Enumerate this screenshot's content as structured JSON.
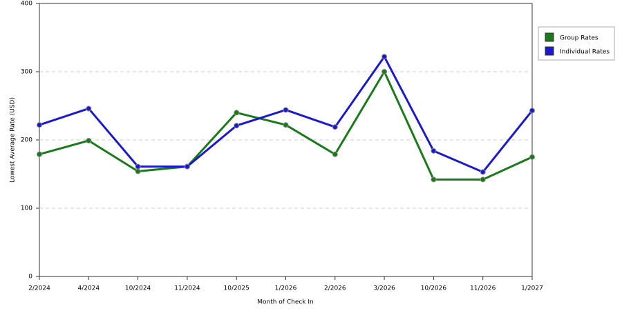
{
  "chart_data": {
    "type": "line",
    "x_label": "Month of Check In",
    "y_label": "Lowest Average Rate (USD)",
    "categories": [
      "2/2024",
      "4/2024",
      "10/2024",
      "11/2024",
      "10/2025",
      "1/2026",
      "2/2026",
      "3/2026",
      "10/2026",
      "11/2026",
      "1/2027"
    ],
    "series": [
      {
        "name": "Group Rates",
        "color": "#1a7a1a",
        "values": [
          179,
          199,
          154,
          161,
          240,
          222,
          179,
          300,
          142,
          142,
          175
        ]
      },
      {
        "name": "Individual Rates",
        "color": "#1a1acc",
        "values": [
          222,
          246,
          161,
          161,
          221,
          244,
          219,
          322,
          184,
          153,
          243
        ]
      }
    ],
    "ylim": [
      0,
      400
    ],
    "yticks": [
      0,
      100,
      200,
      300,
      400
    ],
    "grid": true,
    "legend": "right"
  }
}
